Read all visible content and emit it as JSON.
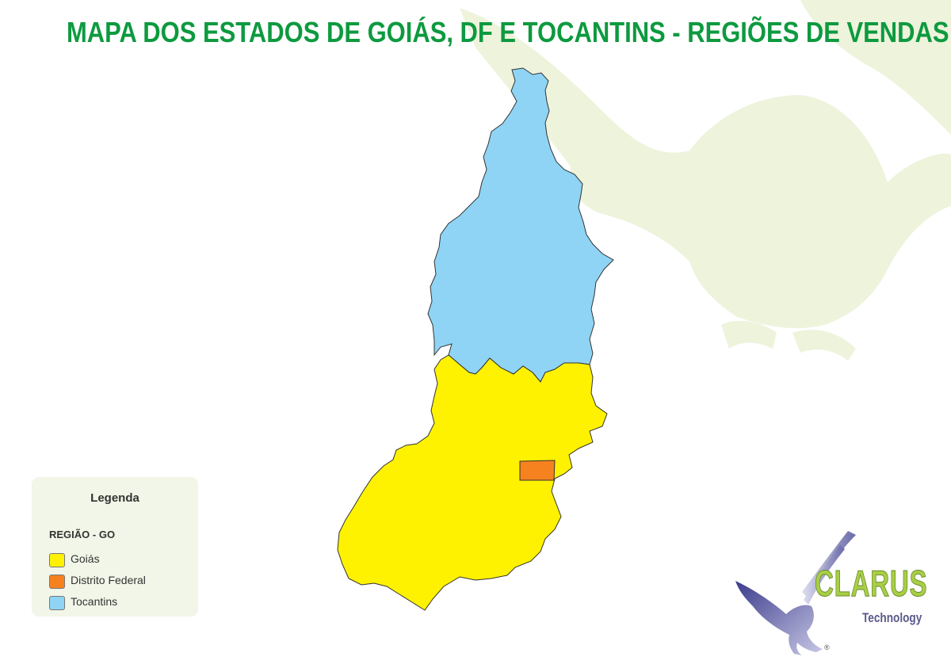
{
  "map": {
    "title": "MAPA DOS ESTADOS DE GOIÁS, DF E TOCANTINS - REGIÕES DE VENDAS",
    "title_color": "#0d9a3f",
    "regions": [
      {
        "name": "Tocantins",
        "color": "#8fd4f5"
      },
      {
        "name": "Goiás",
        "color": "#fff200"
      },
      {
        "name": "Distrito Federal",
        "color": "#f5821f"
      }
    ]
  },
  "legend": {
    "title": "Legenda",
    "subtitle": "REGIÃO - GO",
    "items": [
      {
        "label": "Goiás",
        "color": "#fff200"
      },
      {
        "label": "Distrito Federal",
        "color": "#f5821f"
      },
      {
        "label": "Tocantins",
        "color": "#8fd4f5"
      }
    ]
  },
  "logo": {
    "name": "CLARUS",
    "subtitle": "Technology",
    "mark": "®",
    "icon": "eagle-icon"
  },
  "watermark": {
    "icon": "eagle-watermark-icon",
    "color": "#eef3dc"
  }
}
